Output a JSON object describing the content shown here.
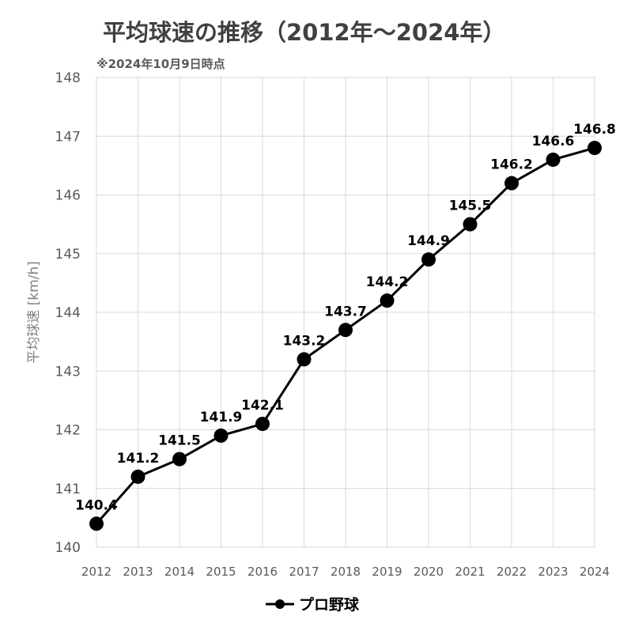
{
  "chart_data": {
    "type": "line",
    "title": "平均球速の推移（2012年～2024年）",
    "subtitle": "※2024年10月9日時点",
    "ylabel": "平均球速 [km/h]",
    "xlabel": "",
    "x": [
      "2012",
      "2013",
      "2014",
      "2015",
      "2016",
      "2017",
      "2018",
      "2019",
      "2020",
      "2021",
      "2022",
      "2023",
      "2024"
    ],
    "series": [
      {
        "name": "プロ野球",
        "color": "#000000",
        "values": [
          140.4,
          141.2,
          141.5,
          141.9,
          142.1,
          143.2,
          143.7,
          144.2,
          144.9,
          145.5,
          146.2,
          146.6,
          146.8
        ],
        "labels": [
          "140.4",
          "141.2",
          "141.5",
          "141.9",
          "142.1",
          "143.2",
          "143.7",
          "144.2",
          "144.9",
          "145.5",
          "146.2",
          "146.6",
          "146.8"
        ]
      }
    ],
    "ylim": [
      140,
      148
    ],
    "yticks": [
      "140",
      "141",
      "142",
      "143",
      "144",
      "145",
      "146",
      "147",
      "148"
    ],
    "grid": true,
    "legend_position": "bottom"
  }
}
